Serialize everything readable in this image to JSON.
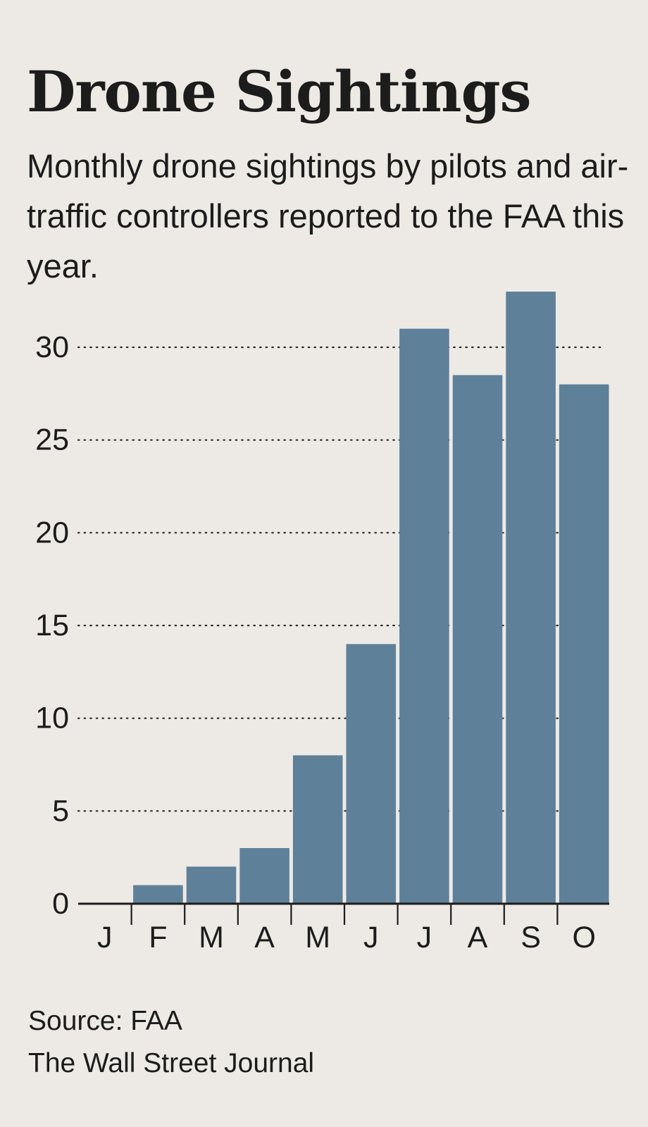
{
  "chart_data": {
    "type": "bar",
    "title": "Drone Sightings",
    "subtitle": "Monthly drone sightings by pilots and air-traffic controllers reported to the FAA this year.",
    "categories": [
      "J",
      "F",
      "M",
      "A",
      "M",
      "J",
      "J",
      "A",
      "S",
      "O"
    ],
    "values": [
      0,
      1,
      2,
      3,
      8,
      14,
      31,
      28.5,
      33,
      28
    ],
    "ylim": [
      0,
      33
    ],
    "yticks": [
      0,
      5,
      10,
      15,
      20,
      25,
      30
    ],
    "xlabel": "",
    "ylabel": "",
    "grid": "dotted",
    "bar_color": "#5f8099"
  },
  "source": {
    "line1": "Source: FAA",
    "line2": "The Wall Street Journal"
  }
}
